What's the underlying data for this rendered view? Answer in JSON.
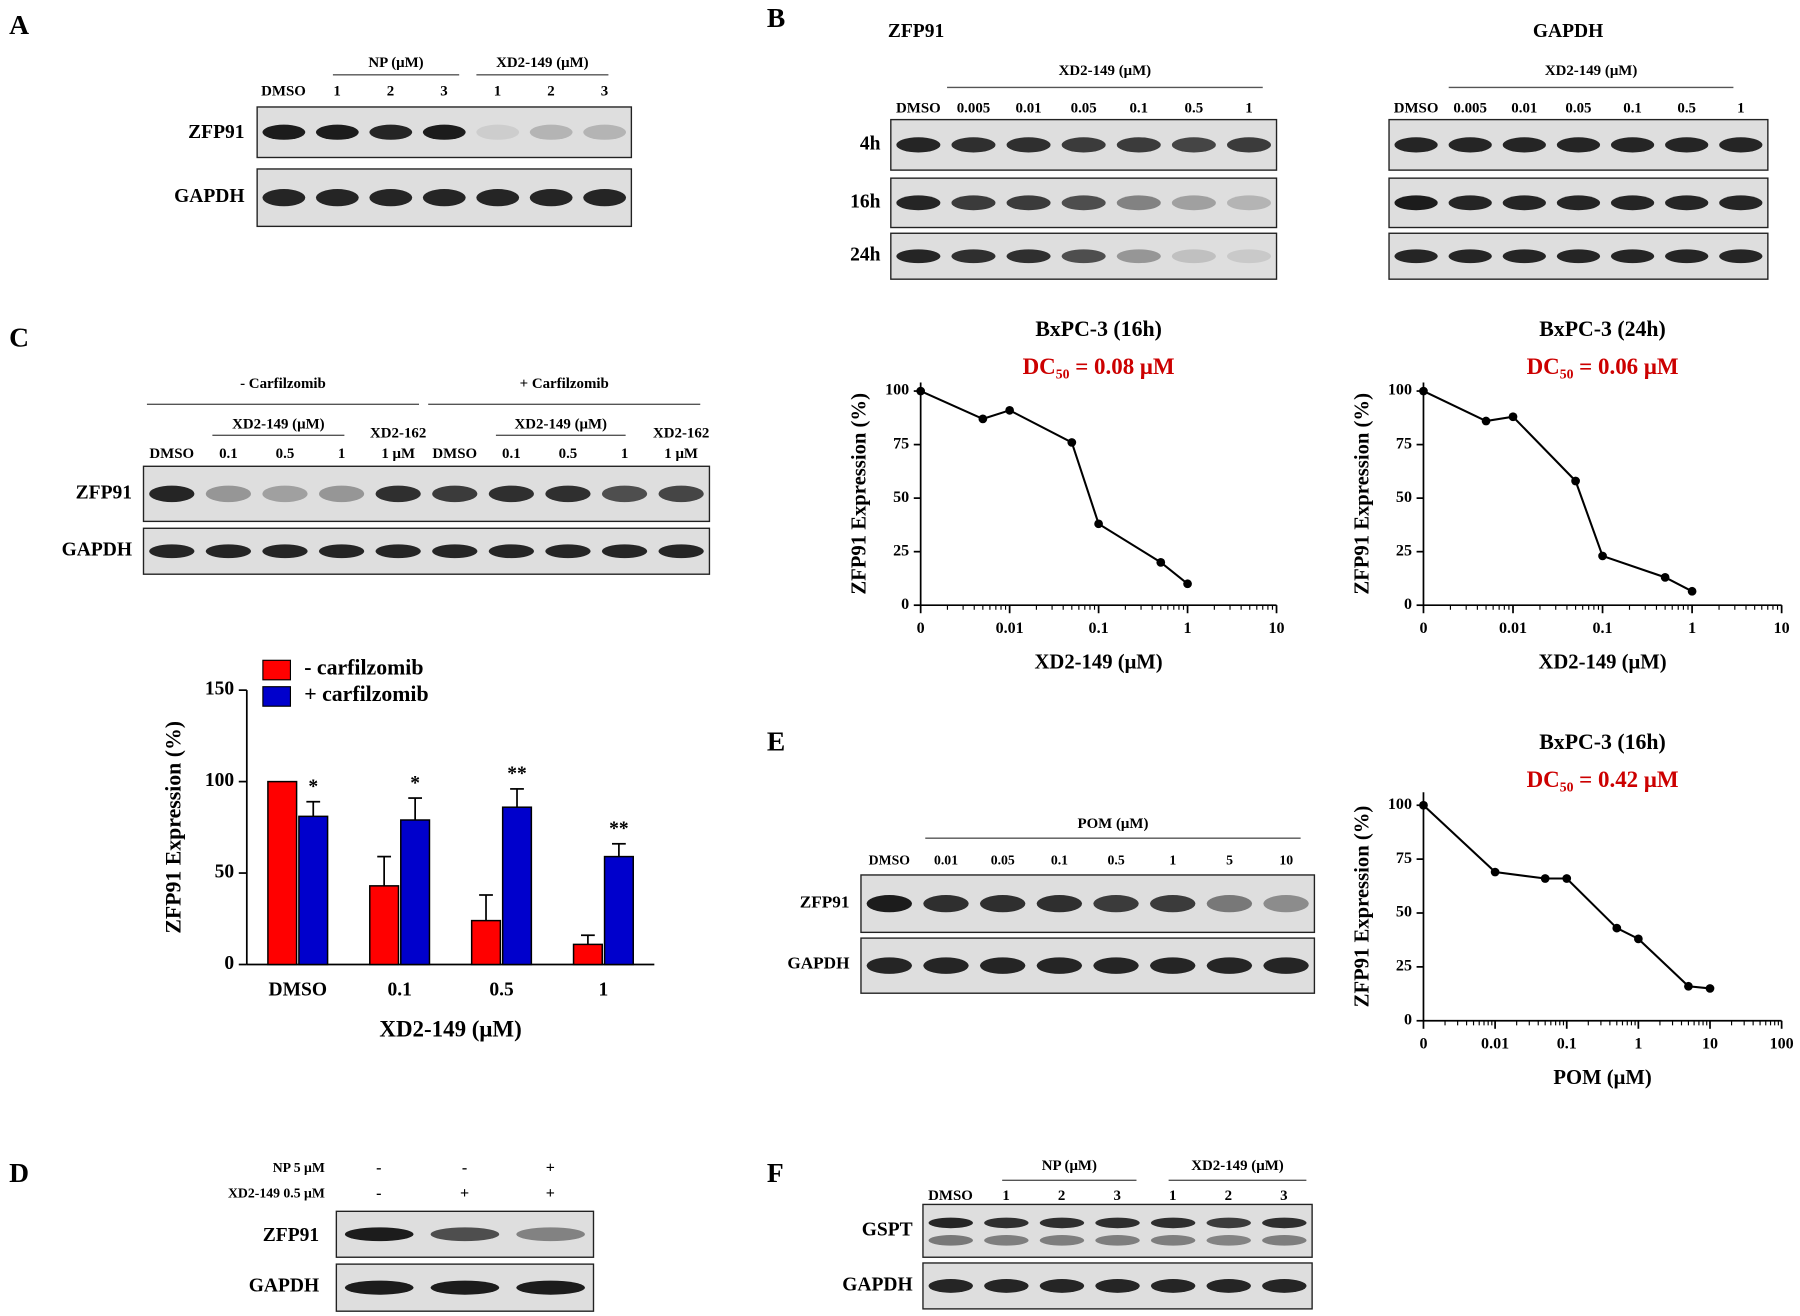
{
  "figure": {
    "A": {
      "letter": "A",
      "headers": [
        "NP (μM)",
        "XD2-149 (μM)"
      ],
      "lanes": [
        "DMSO",
        "1",
        "2",
        "3",
        "1",
        "2",
        "3"
      ],
      "rows": [
        "ZFP91",
        "GAPDH"
      ]
    },
    "B": {
      "letter": "B",
      "rows": [
        "4h",
        "16h",
        "24h"
      ],
      "blots": [
        {
          "title": "ZFP91",
          "header": "XD2-149 (μM)",
          "lanes": [
            "DMSO",
            "0.005",
            "0.01",
            "0.05",
            "0.1",
            "0.5",
            "1"
          ]
        },
        {
          "title": "GAPDH",
          "header": "XD2-149 (μM)",
          "lanes": [
            "DMSO",
            "0.005",
            "0.01",
            "0.05",
            "0.1",
            "0.5",
            "1"
          ]
        }
      ]
    },
    "C": {
      "letter": "C",
      "headers": [
        "- Carfilzomib",
        "+ Carfilzomib"
      ],
      "subheaders": [
        "XD2-149 (μM)",
        "XD2-149 (μM)"
      ],
      "lanes": [
        [
          "DMSO"
        ],
        [
          "0.1"
        ],
        [
          "0.5"
        ],
        [
          "1"
        ],
        [
          "XD2-162",
          "1 μM"
        ],
        [
          "DMSO"
        ],
        [
          "0.1"
        ],
        [
          "0.5"
        ],
        [
          "1"
        ],
        [
          "XD2-162",
          "1 μM"
        ]
      ],
      "rows": [
        "ZFP91",
        "GAPDH"
      ]
    },
    "D": {
      "letter": "D",
      "conditions": [
        {
          "label": "NP 5 μM",
          "marks": [
            "-",
            "-",
            "+"
          ]
        },
        {
          "label": "XD2-149 0.5 μM",
          "marks": [
            "-",
            "+",
            "+"
          ]
        }
      ],
      "rows": [
        "ZFP91",
        "GAPDH"
      ]
    },
    "E": {
      "letter": "E",
      "header": "POM (μM)",
      "lanes": [
        "DMSO",
        "0.01",
        "0.05",
        "0.1",
        "0.5",
        "1",
        "5",
        "10"
      ],
      "rows": [
        "ZFP91",
        "GAPDH"
      ]
    },
    "F": {
      "letter": "F",
      "headers": [
        "NP (μM)",
        "XD2-149 (μM)"
      ],
      "lanes": [
        "DMSO",
        "1",
        "2",
        "3",
        "1",
        "2",
        "3"
      ],
      "rows": [
        "GSPT",
        "GAPDH"
      ]
    }
  },
  "chart_data": [
    {
      "type": "line",
      "title": "BxPC-3 (16h)",
      "subtitle": "DC₅₀ = 0.08 μM",
      "subtitle_color": "#cc0000",
      "xlabel": "XD2-149 (μM)",
      "ylabel": "ZFP91 Expression (%)",
      "color": "#000000",
      "xscale": "log",
      "x": [
        0,
        0.005,
        0.01,
        0.05,
        0.1,
        0.5,
        1
      ],
      "values": [
        100,
        87,
        91,
        76,
        38,
        20,
        10
      ],
      "xlim": [
        0,
        10
      ],
      "xticks": [
        0,
        0.01,
        0.1,
        1,
        10
      ],
      "ylim": [
        0,
        104
      ],
      "yticks": [
        0,
        25,
        50,
        75,
        100
      ]
    },
    {
      "type": "line",
      "title": "BxPC-3 (24h)",
      "subtitle": "DC₅₀ = 0.06 μM",
      "subtitle_color": "#cc0000",
      "xlabel": "XD2-149 (μM)",
      "ylabel": "ZFP91 Expression (%)",
      "color": "#000000",
      "xscale": "log",
      "x": [
        0,
        0.005,
        0.01,
        0.05,
        0.1,
        0.5,
        1
      ],
      "values": [
        100,
        86,
        88,
        58,
        23,
        13,
        6.5
      ],
      "xlim": [
        0,
        10
      ],
      "xticks": [
        0,
        0.01,
        0.1,
        1,
        10
      ],
      "ylim": [
        0,
        104
      ],
      "yticks": [
        0,
        25,
        50,
        75,
        100
      ]
    },
    {
      "type": "line",
      "title": "BxPC-3 (16h)",
      "subtitle": "DC₅₀ = 0.42 μM",
      "subtitle_color": "#cc0000",
      "xlabel": "POM (μM)",
      "ylabel": "ZFP91 Expression (%)",
      "color": "#000000",
      "xscale": "log",
      "x": [
        0,
        0.01,
        0.05,
        0.1,
        0.5,
        1,
        5,
        10
      ],
      "values": [
        100,
        69,
        66,
        66,
        43,
        38,
        16,
        15
      ],
      "xlim": [
        0,
        100
      ],
      "xticks": [
        0,
        0.01,
        0.1,
        1,
        10,
        100
      ],
      "ylim": [
        0,
        106
      ],
      "yticks": [
        0,
        25,
        50,
        75,
        100
      ]
    },
    {
      "type": "bar",
      "xlabel": "XD2-149 (μM)",
      "ylabel": "ZFP91 Expression (%)",
      "categories": [
        "DMSO",
        "0.1",
        "0.5",
        "1"
      ],
      "series": [
        {
          "name": "- carfilzomib",
          "color": "#ff0000",
          "values": [
            100,
            43,
            24,
            11
          ],
          "errors": [
            0,
            16,
            14,
            5
          ]
        },
        {
          "name": "+ carfilzomib",
          "color": "#0000cc",
          "values": [
            81,
            79,
            86,
            59
          ],
          "errors": [
            8,
            12,
            10,
            7
          ]
        }
      ],
      "annotations": [
        "*",
        "*",
        "**",
        "**"
      ],
      "ylim": [
        0,
        150
      ],
      "yticks": [
        0,
        50,
        100,
        150
      ],
      "legend": "top-left"
    }
  ]
}
